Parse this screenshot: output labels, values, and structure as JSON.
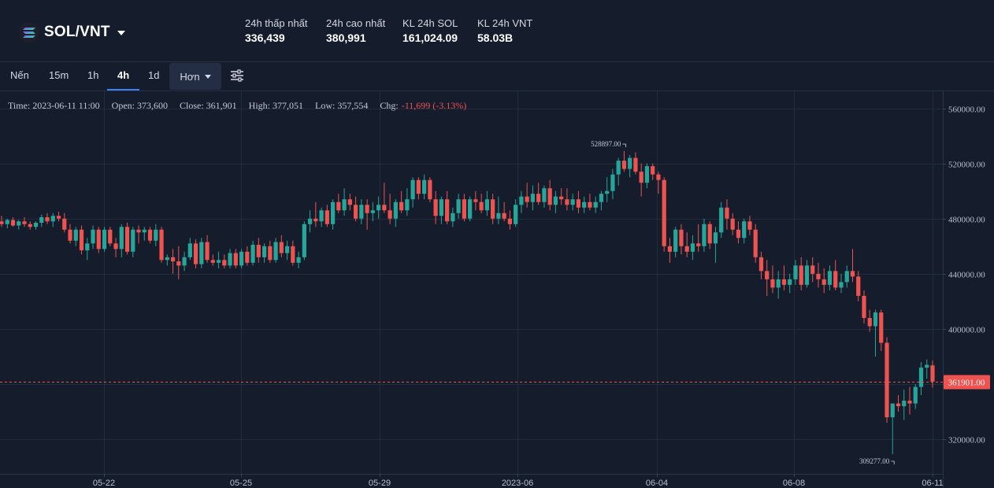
{
  "pair": {
    "symbol": "SOL/VNT",
    "icon": "solana-icon"
  },
  "stats": [
    {
      "label": "24h thấp nhất",
      "value": "336,439"
    },
    {
      "label": "24h cao nhất",
      "value": "380,991"
    },
    {
      "label": "KL 24h SOL",
      "value": "161,024.09"
    },
    {
      "label": "KL 24h VNT",
      "value": "58.03B"
    }
  ],
  "toolbar": {
    "items": [
      "Nến",
      "15m",
      "1h",
      "4h",
      "1d"
    ],
    "active": "4h",
    "more_label": "Hơn",
    "settings_icon": "sliders-icon"
  },
  "legend": {
    "time": "Time: 2023-06-11 11:00",
    "open": "Open: 373,600",
    "close": "Close: 361,901",
    "high": "High: 377,051",
    "low": "Low: 357,554",
    "chg_label": "Chg:",
    "chg_value": "-11,699 (-3.13%)"
  },
  "colors": {
    "up": "#26a69a",
    "down": "#ef5350",
    "background": "#151c2c",
    "grid": "#222c3d",
    "accent": "#3b82f6"
  },
  "chart_data": {
    "type": "candlestick",
    "ylim": [
      295000,
      570000
    ],
    "y_ticks": [
      "560000.00",
      "520000.00",
      "480000.00",
      "440000.00",
      "400000.00",
      "360000.00",
      "320000.00"
    ],
    "y_tick_values": [
      560000,
      520000,
      480000,
      440000,
      400000,
      360000,
      320000
    ],
    "x_ticks": [
      "05-22",
      "05-25",
      "05-29",
      "2023-06",
      "06-04",
      "06-08",
      "06-11"
    ],
    "current_price_label": "361901.00",
    "current_price": 361901,
    "max_annotation": {
      "label": "528897.00",
      "value": 528897
    },
    "min_annotation": {
      "label": "309277.00",
      "value": 309277
    },
    "candles_ohlc": [
      [
        478000,
        482000,
        474000,
        476000
      ],
      [
        476000,
        480000,
        473000,
        479000
      ],
      [
        479000,
        481000,
        474000,
        475000
      ],
      [
        475000,
        479000,
        472000,
        478000
      ],
      [
        478000,
        481000,
        474000,
        476000
      ],
      [
        476000,
        478000,
        472000,
        474000
      ],
      [
        474000,
        478000,
        472000,
        477000
      ],
      [
        477000,
        483000,
        474000,
        481000
      ],
      [
        481000,
        484000,
        476000,
        478000
      ],
      [
        478000,
        484000,
        474000,
        482000
      ],
      [
        482000,
        485000,
        478000,
        480000
      ],
      [
        480000,
        484000,
        470000,
        472000
      ],
      [
        472000,
        476000,
        462000,
        464000
      ],
      [
        464000,
        474000,
        460000,
        472000
      ],
      [
        472000,
        475000,
        454000,
        457000
      ],
      [
        457000,
        466000,
        450000,
        462000
      ],
      [
        462000,
        475000,
        458000,
        472000
      ],
      [
        472000,
        474000,
        455000,
        458000
      ],
      [
        458000,
        474000,
        456000,
        472000
      ],
      [
        472000,
        474000,
        460000,
        462000
      ],
      [
        462000,
        466000,
        452000,
        458000
      ],
      [
        458000,
        476000,
        452000,
        474000
      ],
      [
        474000,
        477000,
        454000,
        456000
      ],
      [
        456000,
        474000,
        452000,
        472000
      ],
      [
        472000,
        475000,
        462000,
        470000
      ],
      [
        470000,
        474000,
        464000,
        472000
      ],
      [
        472000,
        474000,
        462000,
        464000
      ],
      [
        464000,
        476000,
        460000,
        472000
      ],
      [
        472000,
        474000,
        448000,
        450000
      ],
      [
        450000,
        454000,
        446000,
        452000
      ],
      [
        452000,
        458000,
        440000,
        449000
      ],
      [
        449000,
        460000,
        436000,
        446000
      ],
      [
        446000,
        456000,
        442000,
        452000
      ],
      [
        452000,
        466000,
        450000,
        462000
      ],
      [
        462000,
        465000,
        444000,
        447000
      ],
      [
        447000,
        466000,
        444000,
        463000
      ],
      [
        463000,
        468000,
        448000,
        450000
      ],
      [
        450000,
        454000,
        446000,
        448000
      ],
      [
        448000,
        456000,
        444000,
        450000
      ],
      [
        450000,
        454000,
        444000,
        446000
      ],
      [
        446000,
        458000,
        444000,
        455000
      ],
      [
        455000,
        458000,
        444000,
        446000
      ],
      [
        446000,
        458000,
        444000,
        456000
      ],
      [
        456000,
        460000,
        446000,
        448000
      ],
      [
        448000,
        464000,
        446000,
        461000
      ],
      [
        461000,
        466000,
        448000,
        452000
      ],
      [
        452000,
        462000,
        448000,
        460000
      ],
      [
        460000,
        464000,
        448000,
        450000
      ],
      [
        450000,
        466000,
        448000,
        463000
      ],
      [
        463000,
        468000,
        452000,
        455000
      ],
      [
        455000,
        464000,
        450000,
        460000
      ],
      [
        460000,
        464000,
        446000,
        448000
      ],
      [
        448000,
        456000,
        444000,
        452000
      ],
      [
        452000,
        478000,
        450000,
        476000
      ],
      [
        476000,
        486000,
        470000,
        480000
      ],
      [
        480000,
        492000,
        474000,
        478000
      ],
      [
        478000,
        488000,
        474000,
        486000
      ],
      [
        486000,
        490000,
        474000,
        476000
      ],
      [
        476000,
        494000,
        472000,
        492000
      ],
      [
        492000,
        498000,
        484000,
        486000
      ],
      [
        486000,
        502000,
        482000,
        494000
      ],
      [
        494000,
        498000,
        486000,
        490000
      ],
      [
        490000,
        496000,
        478000,
        480000
      ],
      [
        480000,
        494000,
        476000,
        490000
      ],
      [
        490000,
        494000,
        472000,
        484000
      ],
      [
        484000,
        492000,
        478000,
        486000
      ],
      [
        486000,
        496000,
        480000,
        490000
      ],
      [
        490000,
        506000,
        484000,
        486000
      ],
      [
        486000,
        498000,
        476000,
        480000
      ],
      [
        480000,
        494000,
        474000,
        492000
      ],
      [
        492000,
        500000,
        484000,
        486000
      ],
      [
        486000,
        502000,
        482000,
        494000
      ],
      [
        494000,
        510000,
        488000,
        508000
      ],
      [
        508000,
        510000,
        494000,
        498000
      ],
      [
        498000,
        512000,
        494000,
        508000
      ],
      [
        508000,
        510000,
        492000,
        494000
      ],
      [
        494000,
        500000,
        476000,
        482000
      ],
      [
        482000,
        496000,
        476000,
        494000
      ],
      [
        494000,
        500000,
        476000,
        478000
      ],
      [
        478000,
        488000,
        474000,
        484000
      ],
      [
        484000,
        498000,
        480000,
        494000
      ],
      [
        494000,
        498000,
        478000,
        480000
      ],
      [
        480000,
        496000,
        478000,
        494000
      ],
      [
        494000,
        500000,
        486000,
        492000
      ],
      [
        492000,
        498000,
        484000,
        486000
      ],
      [
        486000,
        500000,
        482000,
        494000
      ],
      [
        494000,
        498000,
        476000,
        480000
      ],
      [
        480000,
        496000,
        476000,
        484000
      ],
      [
        484000,
        492000,
        478000,
        480000
      ],
      [
        480000,
        486000,
        472000,
        476000
      ],
      [
        476000,
        494000,
        474000,
        490000
      ],
      [
        490000,
        500000,
        484000,
        496000
      ],
      [
        496000,
        506000,
        488000,
        492000
      ],
      [
        492000,
        504000,
        486000,
        498000
      ],
      [
        498000,
        506000,
        490000,
        492000
      ],
      [
        492000,
        504000,
        488000,
        502000
      ],
      [
        502000,
        508000,
        486000,
        490000
      ],
      [
        490000,
        500000,
        484000,
        496000
      ],
      [
        496000,
        502000,
        490000,
        494000
      ],
      [
        494000,
        502000,
        486000,
        490000
      ],
      [
        490000,
        498000,
        486000,
        494000
      ],
      [
        494000,
        500000,
        484000,
        488000
      ],
      [
        488000,
        496000,
        484000,
        492000
      ],
      [
        492000,
        498000,
        486000,
        488000
      ],
      [
        488000,
        496000,
        484000,
        492000
      ],
      [
        492000,
        500000,
        486000,
        498000
      ],
      [
        498000,
        510000,
        492000,
        500000
      ],
      [
        500000,
        516000,
        494000,
        512000
      ],
      [
        512000,
        524000,
        504000,
        522000
      ],
      [
        522000,
        529000,
        514000,
        516000
      ],
      [
        516000,
        526000,
        510000,
        524000
      ],
      [
        524000,
        528000,
        512000,
        514000
      ],
      [
        514000,
        520000,
        496000,
        506000
      ],
      [
        506000,
        520000,
        502000,
        518000
      ],
      [
        518000,
        520000,
        508000,
        512000
      ],
      [
        512000,
        514000,
        498000,
        508000
      ],
      [
        508000,
        510000,
        456000,
        460000
      ],
      [
        460000,
        466000,
        448000,
        456000
      ],
      [
        456000,
        474000,
        452000,
        472000
      ],
      [
        472000,
        476000,
        454000,
        460000
      ],
      [
        460000,
        470000,
        452000,
        456000
      ],
      [
        456000,
        468000,
        450000,
        462000
      ],
      [
        462000,
        476000,
        456000,
        460000
      ],
      [
        460000,
        480000,
        456000,
        476000
      ],
      [
        476000,
        478000,
        458000,
        462000
      ],
      [
        462000,
        474000,
        448000,
        470000
      ],
      [
        470000,
        492000,
        466000,
        488000
      ],
      [
        488000,
        494000,
        472000,
        480000
      ],
      [
        480000,
        484000,
        468000,
        472000
      ],
      [
        472000,
        478000,
        462000,
        466000
      ],
      [
        466000,
        480000,
        462000,
        478000
      ],
      [
        478000,
        482000,
        468000,
        472000
      ],
      [
        472000,
        476000,
        448000,
        452000
      ],
      [
        452000,
        456000,
        436000,
        442000
      ],
      [
        442000,
        450000,
        424000,
        436000
      ],
      [
        436000,
        446000,
        426000,
        430000
      ],
      [
        430000,
        442000,
        422000,
        436000
      ],
      [
        436000,
        446000,
        428000,
        432000
      ],
      [
        432000,
        440000,
        426000,
        436000
      ],
      [
        436000,
        450000,
        432000,
        446000
      ],
      [
        446000,
        452000,
        428000,
        432000
      ],
      [
        432000,
        450000,
        430000,
        446000
      ],
      [
        446000,
        452000,
        434000,
        440000
      ],
      [
        440000,
        448000,
        430000,
        436000
      ],
      [
        436000,
        444000,
        426000,
        432000
      ],
      [
        432000,
        446000,
        428000,
        442000
      ],
      [
        442000,
        450000,
        428000,
        430000
      ],
      [
        430000,
        440000,
        426000,
        434000
      ],
      [
        434000,
        446000,
        430000,
        442000
      ],
      [
        442000,
        458000,
        434000,
        438000
      ],
      [
        438000,
        442000,
        420000,
        424000
      ],
      [
        424000,
        428000,
        404000,
        408000
      ],
      [
        408000,
        414000,
        398000,
        402000
      ],
      [
        402000,
        414000,
        380000,
        412000
      ],
      [
        412000,
        414000,
        384000,
        390000
      ],
      [
        390000,
        394000,
        332000,
        336000
      ],
      [
        336000,
        342000,
        309277,
        346000
      ],
      [
        346000,
        352000,
        340000,
        344000
      ],
      [
        344000,
        356000,
        334000,
        348000
      ],
      [
        348000,
        358000,
        338000,
        346000
      ],
      [
        346000,
        360000,
        342000,
        358000
      ],
      [
        358000,
        376000,
        352000,
        372000
      ],
      [
        372000,
        378000,
        364000,
        374000
      ],
      [
        373600,
        377051,
        357554,
        361901
      ]
    ]
  }
}
